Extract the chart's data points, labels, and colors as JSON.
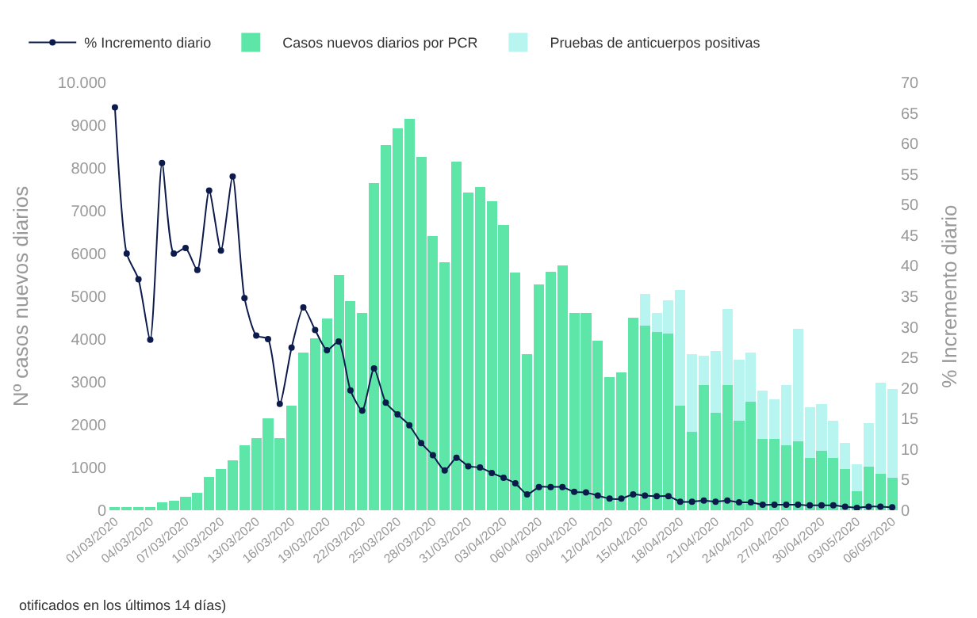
{
  "chart_data": {
    "type": "bar",
    "stacked": true,
    "categories": [
      "01/03/2020",
      null,
      null,
      "04/03/2020",
      null,
      null,
      "07/03/2020",
      null,
      null,
      "10/03/2020",
      null,
      null,
      "13/03/2020",
      null,
      null,
      "16/03/2020",
      null,
      null,
      "19/03/2020",
      null,
      null,
      "22/03/2020",
      null,
      null,
      "25/03/2020",
      null,
      null,
      "28/03/2020",
      null,
      null,
      "31/03/2020",
      null,
      null,
      "03/04/2020",
      null,
      null,
      "06/04/2020",
      null,
      null,
      "09/04/2020",
      null,
      null,
      "12/04/2020",
      null,
      null,
      "15/04/2020",
      null,
      null,
      "18/04/2020",
      null,
      null,
      "21/04/2020",
      null,
      null,
      "24/04/2020",
      null,
      null,
      "27/04/2020",
      null,
      null,
      "30/04/2020",
      null,
      null,
      "03/05/2020",
      null,
      null,
      "06/05/2020"
    ],
    "ylabel": "Nº casos nuevos diarios",
    "y2label": "% Incremento diario",
    "ylim": [
      0,
      10000
    ],
    "yticks": [
      0,
      1000,
      2000,
      3000,
      4000,
      5000,
      6000,
      7000,
      8000,
      9000,
      {
        "value": 10000,
        "label": "10.000"
      }
    ],
    "y2lim": [
      0,
      70
    ],
    "y2ticks": [
      0,
      5,
      10,
      15,
      20,
      25,
      30,
      35,
      40,
      45,
      50,
      55,
      60,
      65,
      70
    ],
    "legend": "top left",
    "annotations": [
      "otificados en los últimos 14 días)"
    ],
    "series": [
      {
        "name": "Casos nuevos diarios por PCR",
        "color": "#5ee6a8",
        "values": [
          40,
          40,
          40,
          50,
          190,
          220,
          320,
          410,
          770,
          970,
          1160,
          1510,
          1690,
          2140,
          1690,
          2450,
          3690,
          4010,
          4480,
          5500,
          4880,
          4610,
          7640,
          8530,
          8930,
          9140,
          8260,
          6410,
          5790,
          8140,
          7420,
          7550,
          7230,
          6660,
          5550,
          3640,
          5280,
          5570,
          5730,
          4610,
          4610,
          3960,
          3120,
          3230,
          4500,
          4320,
          4170,
          4130,
          2440,
          1830,
          2930,
          2280,
          2930,
          2090,
          2540,
          1660,
          1660,
          1510,
          1610,
          1230,
          1380,
          1230,
          960,
          450,
          1020,
          860,
          760
        ]
      },
      {
        "name": "Pruebas de anticuerpos positivas",
        "color": "#b8f5f0",
        "values": [
          null,
          null,
          null,
          null,
          null,
          null,
          null,
          null,
          null,
          null,
          null,
          null,
          null,
          null,
          null,
          null,
          null,
          null,
          null,
          null,
          null,
          null,
          null,
          null,
          null,
          null,
          null,
          null,
          null,
          null,
          null,
          null,
          null,
          null,
          null,
          null,
          null,
          null,
          null,
          null,
          null,
          null,
          null,
          null,
          null,
          740,
          440,
          770,
          2710,
          1810,
          680,
          1450,
          1780,
          1420,
          1140,
          1140,
          930,
          1420,
          2640,
          1180,
          1100,
          860,
          610,
          630,
          1010,
          2130,
          2070
        ]
      },
      {
        "name": "% Incremento diario",
        "type": "line",
        "axis": "y2",
        "color": "#0d1b4c",
        "marker": "circle",
        "line_style": "solid",
        "values": [
          65.9,
          42.0,
          37.8,
          27.9,
          56.8,
          42.0,
          42.9,
          39.3,
          52.3,
          42.5,
          54.6,
          34.7,
          28.6,
          28.0,
          17.4,
          26.6,
          33.2,
          29.5,
          26.2,
          27.6,
          19.6,
          16.3,
          23.2,
          17.6,
          15.7,
          13.9,
          11.0,
          9.0,
          6.5,
          8.6,
          7.2,
          7.0,
          6.1,
          5.3,
          4.4,
          2.6,
          3.8,
          3.8,
          3.8,
          3.0,
          2.9,
          2.4,
          1.9,
          1.9,
          2.6,
          2.4,
          2.3,
          2.3,
          1.4,
          1.4,
          1.6,
          1.4,
          1.6,
          1.3,
          1.3,
          0.9,
          0.9,
          0.9,
          0.9,
          0.8,
          0.8,
          0.8,
          0.6,
          0.4,
          0.6,
          0.6,
          0.5
        ]
      }
    ]
  }
}
